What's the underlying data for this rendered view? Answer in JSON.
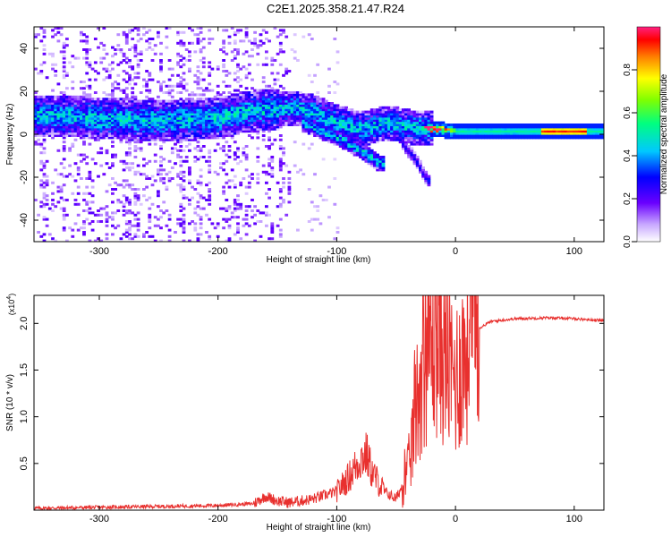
{
  "title": "C2E1.2025.358.21.47.R24",
  "chart_data": [
    {
      "type": "heatmap",
      "xlabel": "Height of straight line (km)",
      "ylabel": "Frequency (Hz)",
      "xlim": [
        -355,
        125
      ],
      "ylim": [
        -50,
        50
      ],
      "xticks": [
        -300,
        -200,
        -100,
        0,
        100
      ],
      "yticks": [
        -40,
        -20,
        0,
        20,
        40
      ],
      "colorbar": {
        "label": "Normalized spectral amplitude",
        "range": [
          0.0,
          1.0
        ],
        "ticks": [
          0.0,
          0.2,
          0.4,
          0.6,
          0.8
        ],
        "tick_labels": [
          "0.0",
          "0.2",
          "0.4",
          "0.6",
          "0.8"
        ],
        "colormap": [
          "#ffffff",
          "#6a00ff",
          "#0000ff",
          "#00c8ff",
          "#00ff80",
          "#80ff00",
          "#ffff00",
          "#ff8000",
          "#ff0000",
          "#ff2080"
        ]
      },
      "ridge": [
        {
          "x": -330,
          "f": 8
        },
        {
          "x": -300,
          "f": 7
        },
        {
          "x": -250,
          "f": 6
        },
        {
          "x": -200,
          "f": 7
        },
        {
          "x": -180,
          "f": 10
        },
        {
          "x": -140,
          "f": 12
        },
        {
          "x": -120,
          "f": 10
        },
        {
          "x": -100,
          "f": 5
        },
        {
          "x": -80,
          "f": 2
        },
        {
          "x": -60,
          "f": 5
        },
        {
          "x": -40,
          "f": 3
        },
        {
          "x": -20,
          "f": 2
        },
        {
          "x": 0,
          "f": 1
        },
        {
          "x": 50,
          "f": 1
        },
        {
          "x": 100,
          "f": 1
        },
        {
          "x": 125,
          "f": 1
        }
      ],
      "lower_branch": [
        {
          "x": -130,
          "f": 5
        },
        {
          "x": -100,
          "f": -2
        },
        {
          "x": -80,
          "f": -8
        },
        {
          "x": -65,
          "f": -14
        }
      ],
      "lower_branch2": [
        {
          "x": -45,
          "f": -5
        },
        {
          "x": -35,
          "f": -12
        },
        {
          "x": -25,
          "f": -22
        }
      ]
    },
    {
      "type": "line",
      "xlabel": "Height of straight line (km)",
      "ylabel": "SNR (10 * v/v)",
      "y_multiplier": "(x10",
      "y_multiplier_exp": "4",
      "xlim": [
        -355,
        125
      ],
      "ylim": [
        0,
        2.3
      ],
      "xticks": [
        -300,
        -200,
        -100,
        0,
        100
      ],
      "yticks": [
        0.5,
        1.0,
        1.5,
        2.0
      ],
      "ytick_labels": [
        "0.5",
        "1.0",
        "1.5",
        "2.0"
      ],
      "color": "#e8302e",
      "series": [
        {
          "values_x": [
            -355,
            -300,
            -250,
            -200,
            -170,
            -160,
            -150,
            -140,
            -120,
            -100,
            -90,
            -80,
            -75,
            -70,
            -60,
            -50,
            -40,
            -35,
            -30,
            -25,
            -20,
            -15,
            -10,
            -5,
            0,
            5,
            10,
            15,
            20,
            30,
            50,
            80,
            100,
            125
          ],
          "values_y": [
            0.02,
            0.03,
            0.04,
            0.05,
            0.07,
            0.15,
            0.1,
            0.08,
            0.12,
            0.2,
            0.35,
            0.55,
            0.6,
            0.4,
            0.2,
            0.12,
            0.4,
            0.9,
            1.4,
            1.7,
            1.8,
            1.85,
            1.7,
            1.5,
            1.4,
            1.6,
            1.7,
            1.85,
            1.95,
            2.02,
            2.05,
            2.06,
            2.05,
            2.03
          ]
        }
      ]
    }
  ]
}
